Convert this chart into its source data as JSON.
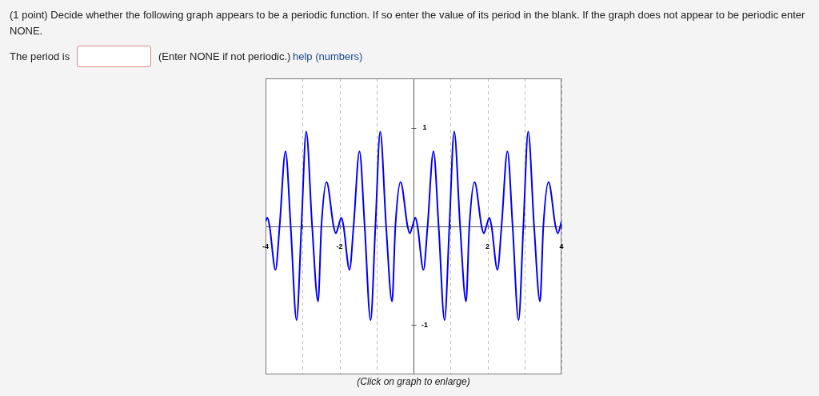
{
  "chart_data": {
    "type": "line",
    "title": "(1 point) Decide whether the following graph appears to be a periodic function. If so enter the value of its period in the blank. If the graph does not appear to be periodic enter NONE.",
    "annotations": [
      "The period is",
      "(Enter NONE if not periodic.)",
      "help (numbers)",
      "(Click on graph to enlarge)"
    ],
    "x": [
      -4,
      -3.95,
      -3.89,
      -3.73,
      -3.62,
      -3.46,
      -3.32,
      -3.16,
      -3.03,
      -2.9,
      -2.74,
      -2.58,
      -2.49,
      -2.35,
      -2.16,
      -2.1,
      -2.03,
      -1.95,
      -1.89,
      -1.73,
      -1.62,
      -1.46,
      -1.32,
      -1.16,
      -1.03,
      -0.9,
      -0.74,
      -0.58,
      -0.49,
      -0.35,
      -0.16,
      -0.1,
      -0.03,
      0.05,
      0.11,
      0.27,
      0.38,
      0.54,
      0.68,
      0.84,
      0.97,
      1.1,
      1.26,
      1.42,
      1.51,
      1.65,
      1.84,
      1.9,
      1.97,
      2.05,
      2.11,
      2.27,
      2.38,
      2.54,
      2.68,
      2.84,
      2.97,
      3.1,
      3.26,
      3.42,
      3.51,
      3.65,
      3.84,
      3.9,
      4
    ],
    "series": [
      {
        "color": "#0000ff",
        "values": [
          0.05,
          0.09,
          0,
          -0.44,
          0,
          0.76,
          0,
          -0.95,
          0,
          0.96,
          0,
          -0.76,
          0,
          0.45,
          0,
          -0.07,
          0,
          0.09,
          0,
          -0.44,
          0,
          0.76,
          0,
          -0.95,
          0,
          0.96,
          0,
          -0.76,
          0,
          0.45,
          0,
          -0.07,
          0,
          0.09,
          0,
          -0.44,
          0,
          0.76,
          0,
          -0.95,
          0,
          0.96,
          0,
          -0.76,
          0,
          0.45,
          0,
          -0.07,
          0,
          0.09,
          0,
          -0.44,
          0,
          0.76,
          0,
          -0.95,
          0,
          0.96,
          0,
          -0.76,
          0,
          0.45,
          0,
          -0.07,
          0.05
        ]
      }
    ],
    "xlim": [
      -4,
      4
    ],
    "ylim": [
      -1.5,
      1.5
    ],
    "xticks": [
      {
        "value": -4,
        "label": "-4"
      },
      {
        "value": -3,
        "label": null
      },
      {
        "value": -2,
        "label": "-2"
      },
      {
        "value": -1,
        "label": null
      },
      {
        "value": 0,
        "label": null
      },
      {
        "value": 1,
        "label": null
      },
      {
        "value": 2,
        "label": "2"
      },
      {
        "value": 3,
        "label": null
      },
      {
        "value": 4,
        "label": "4"
      }
    ],
    "yticks": [
      {
        "value": -1,
        "label": "-1"
      },
      {
        "value": 0,
        "label": null
      },
      {
        "value": 1,
        "label": "1"
      }
    ],
    "grid": "x",
    "legend": false,
    "marker": "none",
    "line_style": "solid"
  }
}
